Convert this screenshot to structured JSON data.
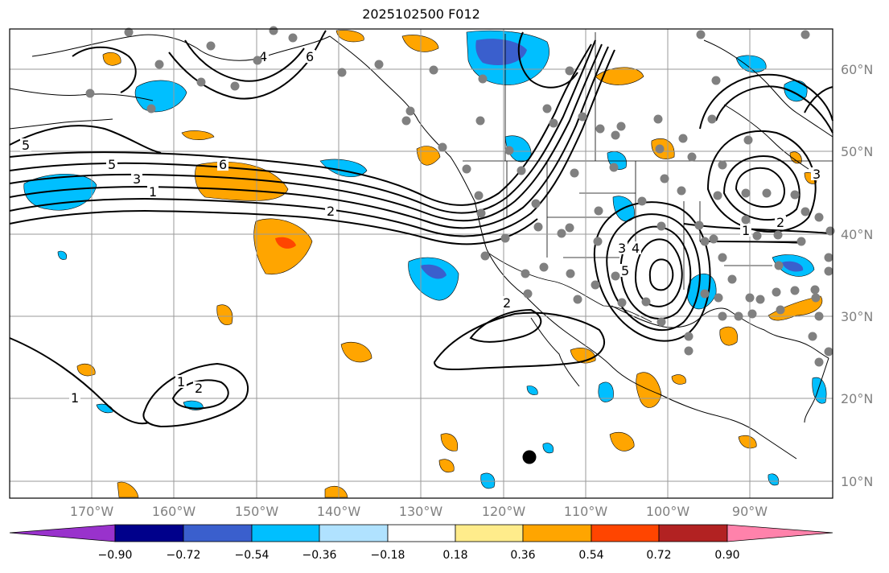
{
  "title": "2025102500 F012",
  "latitude_labels": [
    "60°N",
    "50°N",
    "40°N",
    "30°N",
    "20°N",
    "10°N"
  ],
  "longitude_labels": [
    "170°W",
    "160°W",
    "150°W",
    "140°W",
    "130°W",
    "120°W",
    "110°W",
    "100°W",
    "90°W"
  ],
  "contour_labels": [
    "5",
    "5",
    "3",
    "1",
    "6",
    "2",
    "6",
    "4",
    "5",
    "4",
    "3",
    "2",
    "3",
    "2",
    "1",
    "1",
    "2",
    "1"
  ],
  "colorbar": {
    "ticks": [
      "−0.90",
      "−0.72",
      "−0.54",
      "−0.36",
      "−0.18",
      "0.18",
      "0.36",
      "0.54",
      "0.72",
      "0.90"
    ],
    "colors": [
      "#9932cc",
      "#00008b",
      "#3a5fcd",
      "#00bfff",
      "#b0e2ff",
      "#ffffff",
      "#ffec8b",
      "#ffa500",
      "#ff4500",
      "#b22222",
      "#ff82ab"
    ]
  },
  "colors": {
    "grid": "#9a9a9a",
    "coast": "#000000",
    "contour": "#000000",
    "station": "#808080",
    "marker": "#000000"
  }
}
